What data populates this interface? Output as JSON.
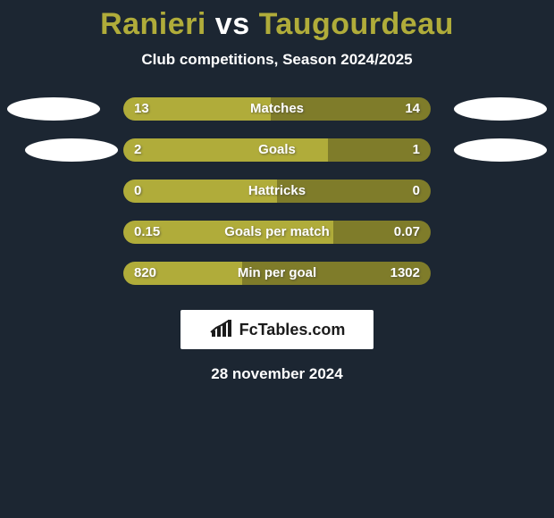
{
  "background_color": "#1c2632",
  "title": {
    "left": "Ranieri",
    "vs": "vs",
    "right": "Taugourdeau",
    "left_color": "#b0ac3a",
    "vs_color": "#ffffff",
    "right_color": "#b0ac3a"
  },
  "subtitle": {
    "text": "Club competitions, Season 2024/2025",
    "color": "#ffffff"
  },
  "value_text_color": "#ffffff",
  "metric_text_color": "#ffffff",
  "track_colors": {
    "left": "#b0ac3a",
    "right": "#7f7c2a"
  },
  "ellipse_colors": {
    "left": "#ffffff",
    "right": "#ffffff"
  },
  "rows": [
    {
      "label": "Matches",
      "left_value": "13",
      "right_value": "14",
      "left_pct": 48.1,
      "right_pct": 51.9,
      "show_ellipses": true,
      "ellipse_right_offset": 0
    },
    {
      "label": "Goals",
      "left_value": "2",
      "right_value": "1",
      "left_pct": 66.7,
      "right_pct": 33.3,
      "show_ellipses": true,
      "ellipse_right_offset": 0,
      "ellipse_left_indent": 20
    },
    {
      "label": "Hattricks",
      "left_value": "0",
      "right_value": "0",
      "left_pct": 50.0,
      "right_pct": 50.0,
      "show_ellipses": false
    },
    {
      "label": "Goals per match",
      "left_value": "0.15",
      "right_value": "0.07",
      "left_pct": 68.2,
      "right_pct": 31.8,
      "show_ellipses": false
    },
    {
      "label": "Min per goal",
      "left_value": "820",
      "right_value": "1302",
      "left_pct": 38.6,
      "right_pct": 61.4,
      "show_ellipses": false
    }
  ],
  "logo": {
    "box_bg": "#ffffff",
    "text": "FcTables.com",
    "text_color": "#1b1b1b",
    "icon_color": "#1b1b1b"
  },
  "datestamp": {
    "text": "28 november 2024",
    "color": "#ffffff"
  }
}
